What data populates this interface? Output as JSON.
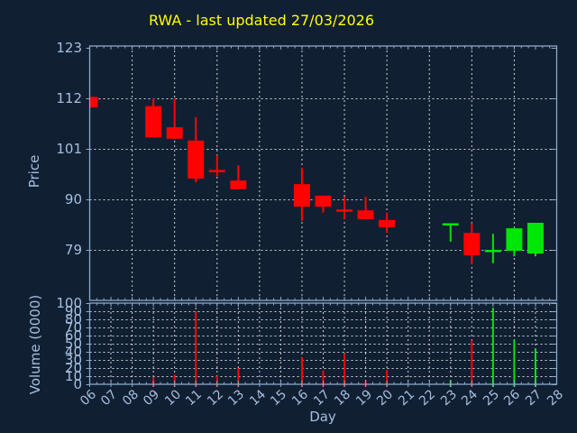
{
  "title": {
    "text": "RWA - last updated 27/03/2026"
  },
  "colors": {
    "background": "#111f32",
    "title": "#ffff00",
    "axis_border": "#8aa9ca",
    "tick_label": "#a3bfdf",
    "grid": "#cdd1d6",
    "up_candle": "#00e606",
    "down_candle": "#ff0200"
  },
  "price_axis": {
    "label": "Price",
    "ticks": [
      79,
      90,
      101,
      112,
      123
    ]
  },
  "volume_axis": {
    "label": "Volume (0000)",
    "ticks": [
      0,
      10,
      20,
      30,
      40,
      50,
      60,
      70,
      80,
      90,
      100
    ]
  },
  "x_axis": {
    "label": "Day",
    "tick_labels": [
      "06",
      "07",
      "08",
      "09",
      "10",
      "11",
      "12",
      "13",
      "14",
      "15",
      "16",
      "17",
      "18",
      "19",
      "20",
      "21",
      "22",
      "23",
      "24",
      "25",
      "26",
      "27",
      "28"
    ],
    "tick_days": [
      6,
      7,
      8,
      9,
      10,
      11,
      12,
      13,
      14,
      15,
      16,
      17,
      18,
      19,
      20,
      21,
      22,
      23,
      24,
      25,
      26,
      27,
      28
    ]
  },
  "chart_data": {
    "type": "candlestick",
    "title": "RWA - last updated 27/03/2026",
    "xlabel": "Day",
    "ylabel_price": "Price",
    "ylabel_volume": "Volume (0000)",
    "x_range_days": [
      6,
      28
    ],
    "price_axis_ticks": [
      79,
      90,
      101,
      112,
      123
    ],
    "volume_axis_range": [
      0,
      100
    ],
    "grid": {
      "price_plot_vline_days": [
        8,
        10,
        12,
        14,
        16,
        18,
        20,
        22,
        24,
        26
      ],
      "price_plot_hlines": [
        79,
        90,
        101,
        112
      ],
      "volume_plot_vline_days": [
        7,
        8,
        9,
        10,
        11,
        12,
        13,
        14,
        15,
        16,
        17,
        18,
        19,
        20,
        21,
        22,
        23,
        24,
        25,
        26,
        27
      ],
      "volume_plot_hlines": [
        10,
        20,
        30,
        40,
        50,
        60,
        70,
        80,
        90
      ],
      "style": "dashed"
    },
    "legend": "none",
    "candles": [
      {
        "day": 6,
        "open": 112.3,
        "high": 112.3,
        "low": 110.0,
        "close": 110.0,
        "volume": 0,
        "direction": "down"
      },
      {
        "day": 9,
        "open": 110.3,
        "high": 112.0,
        "low": 103.5,
        "close": 103.5,
        "volume": 9,
        "direction": "down"
      },
      {
        "day": 10,
        "open": 105.7,
        "high": 112.0,
        "low": 103.2,
        "close": 103.2,
        "volume": 12,
        "direction": "down"
      },
      {
        "day": 11,
        "open": 102.8,
        "high": 107.9,
        "low": 93.7,
        "close": 94.5,
        "volume": 90,
        "direction": "down"
      },
      {
        "day": 12,
        "open": 96.4,
        "high": 99.6,
        "low": 95.0,
        "close": 96.4,
        "volume": 10,
        "direction": "down"
      },
      {
        "day": 13,
        "open": 94.1,
        "high": 97.4,
        "low": 92.2,
        "close": 92.2,
        "volume": 20,
        "direction": "down"
      },
      {
        "day": 16,
        "open": 93.3,
        "high": 96.9,
        "low": 85.3,
        "close": 88.4,
        "volume": 33,
        "direction": "down"
      },
      {
        "day": 17,
        "open": 90.8,
        "high": 90.8,
        "low": 87.1,
        "close": 88.4,
        "volume": 17,
        "direction": "down"
      },
      {
        "day": 18,
        "open": 87.8,
        "high": 90.6,
        "low": 85.7,
        "close": 87.8,
        "volume": 38,
        "direction": "down"
      },
      {
        "day": 19,
        "open": 87.6,
        "high": 90.6,
        "low": 85.7,
        "close": 85.7,
        "volume": 4,
        "direction": "down"
      },
      {
        "day": 20,
        "open": 85.5,
        "high": 87.1,
        "low": 82.7,
        "close": 83.9,
        "volume": 18,
        "direction": "down"
      },
      {
        "day": 23,
        "open": 84.8,
        "high": 84.8,
        "low": 80.8,
        "close": 84.8,
        "volume": 5,
        "direction": "up"
      },
      {
        "day": 24,
        "open": 82.7,
        "high": 84.8,
        "low": 75.9,
        "close": 77.8,
        "volume": 54,
        "direction": "down"
      },
      {
        "day": 25,
        "open": 79.0,
        "high": 82.5,
        "low": 76.1,
        "close": 79.0,
        "volume": 94,
        "direction": "up"
      },
      {
        "day": 26,
        "open": 78.8,
        "high": 83.7,
        "low": 77.6,
        "close": 83.7,
        "volume": 55,
        "direction": "up"
      },
      {
        "day": 27,
        "open": 78.2,
        "high": 84.9,
        "low": 77.6,
        "close": 84.9,
        "volume": 44,
        "direction": "up"
      }
    ]
  }
}
